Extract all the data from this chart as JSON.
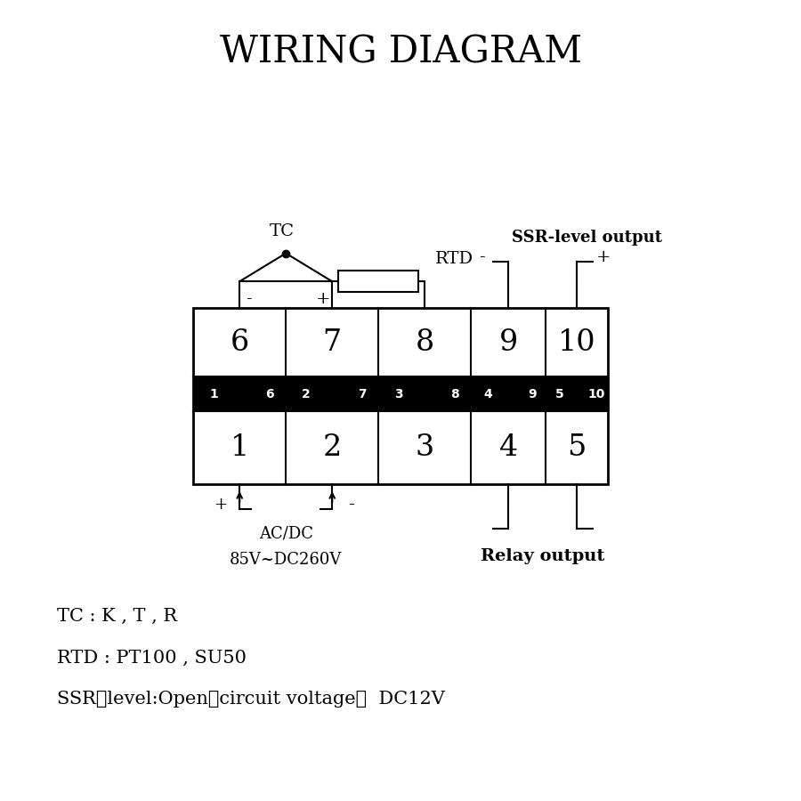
{
  "title": "WIRING DIAGRAM",
  "title_fontsize": 30,
  "bg_color": "#ffffff",
  "fg_color": "#000000",
  "fig_width": 9.0,
  "fig_height": 9.0,
  "tc_label": "TC",
  "rtd_label": "RTD",
  "ssr_label": "SSR-level output",
  "relay_label": "Relay output",
  "power_label1": "AC/DC",
  "power_label2": "85V~DC260V",
  "bottom_texts": [
    "TC : K , T , R",
    "RTD : PT100 , SU50",
    "SSR－level:Open－circuit voltage：  DC12V"
  ]
}
